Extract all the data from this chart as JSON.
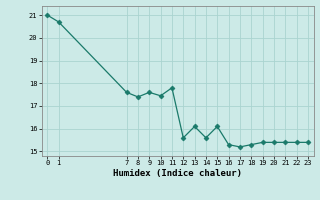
{
  "x_values": [
    0,
    1,
    7,
    8,
    9,
    10,
    11,
    12,
    13,
    14,
    15,
    16,
    17,
    18,
    19,
    20,
    21,
    22,
    23
  ],
  "y_values": [
    21.0,
    20.7,
    17.6,
    17.4,
    17.6,
    17.45,
    17.8,
    15.6,
    16.1,
    15.6,
    16.1,
    15.3,
    15.2,
    15.3,
    15.4,
    15.4,
    15.4,
    15.4,
    15.4
  ],
  "xlabel": "Humidex (Indice chaleur)",
  "line_color": "#1a7a6a",
  "marker_color": "#1a7a6a",
  "bg_color": "#cceae7",
  "grid_color": "#aad4d0",
  "ylim": [
    14.8,
    21.4
  ],
  "yticks": [
    15,
    16,
    17,
    18,
    19,
    20,
    21
  ],
  "xticks": [
    0,
    1,
    7,
    8,
    9,
    10,
    11,
    12,
    13,
    14,
    15,
    16,
    17,
    18,
    19,
    20,
    21,
    22,
    23
  ]
}
